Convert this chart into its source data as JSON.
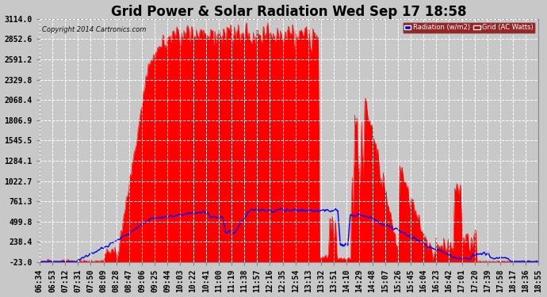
{
  "title": "Grid Power & Solar Radiation Wed Sep 17 18:58",
  "copyright": "Copyright 2014 Cartronics.com",
  "background_color": "#c8c8c8",
  "plot_bg_color": "#c8c8c8",
  "grid_color": "#ffffff",
  "yticks": [
    -23.0,
    238.4,
    499.8,
    761.3,
    1022.7,
    1284.1,
    1545.5,
    1806.9,
    2068.4,
    2329.8,
    2591.2,
    2852.6,
    3114.0
  ],
  "ymin": -23.0,
  "ymax": 3114.0,
  "legend_labels": [
    "Radiation (w/m2)",
    "Grid (AC Watts)"
  ],
  "legend_colors_bg": [
    "#0000cc",
    "#cc0000"
  ],
  "xtick_labels": [
    "06:34",
    "06:53",
    "07:12",
    "07:31",
    "07:50",
    "08:09",
    "08:28",
    "08:47",
    "09:06",
    "09:25",
    "09:44",
    "10:03",
    "10:22",
    "10:41",
    "11:00",
    "11:19",
    "11:38",
    "11:57",
    "12:16",
    "12:35",
    "12:54",
    "13:13",
    "13:32",
    "13:51",
    "14:10",
    "14:29",
    "14:48",
    "15:07",
    "15:26",
    "15:45",
    "16:04",
    "16:23",
    "16:42",
    "17:01",
    "17:20",
    "17:39",
    "17:58",
    "18:17",
    "18:36",
    "18:55"
  ],
  "title_fontsize": 12,
  "tick_fontsize": 7,
  "figwidth": 6.9,
  "figheight": 3.75,
  "dpi": 100
}
